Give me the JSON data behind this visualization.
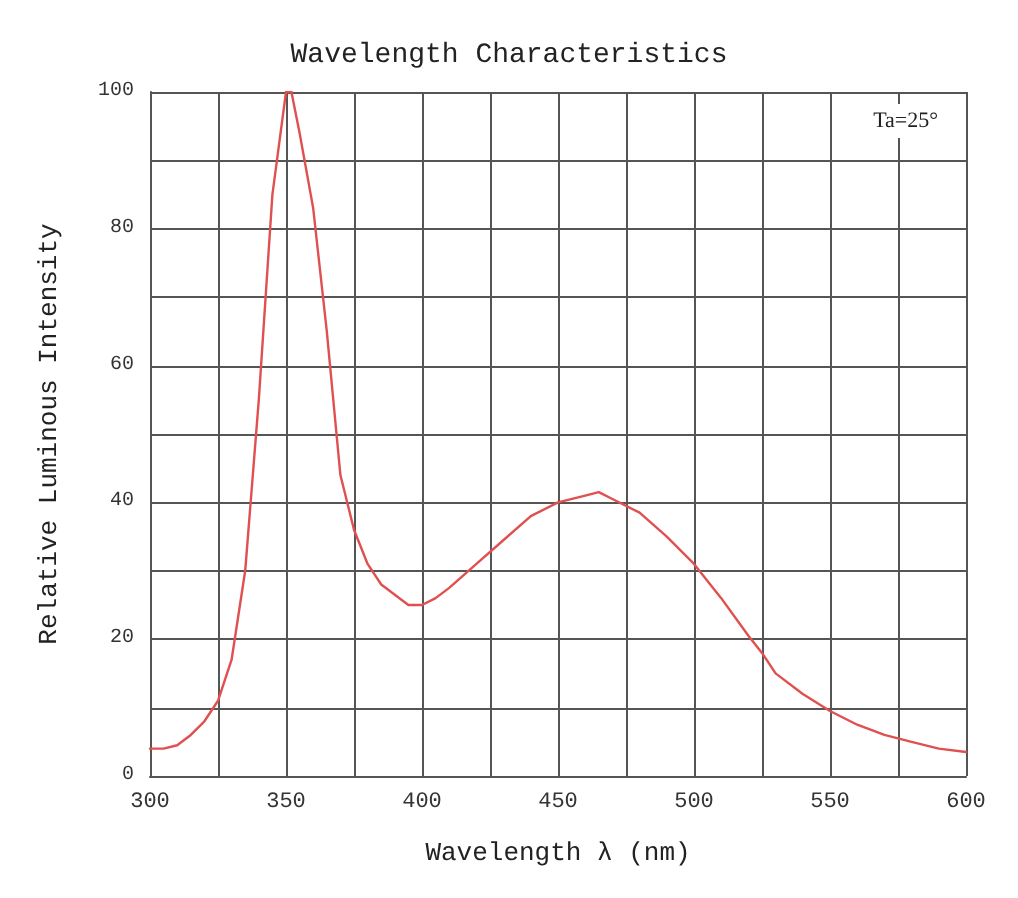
{
  "chart_data": {
    "type": "line",
    "title": "Wavelength Characteristics",
    "xlabel": "Wavelength λ (nm)",
    "ylabel": "Relative Luminous Intensity",
    "annotations": [
      "Ta=25°"
    ],
    "x": [
      300,
      305,
      310,
      315,
      320,
      325,
      330,
      335,
      340,
      345,
      350,
      352,
      355,
      360,
      365,
      370,
      375,
      380,
      385,
      390,
      395,
      400,
      405,
      410,
      420,
      430,
      440,
      450,
      460,
      465,
      470,
      480,
      490,
      500,
      510,
      520,
      525,
      530,
      540,
      550,
      560,
      570,
      580,
      590,
      600
    ],
    "series": [
      {
        "color": "#e05050",
        "values": [
          4,
          4,
          4.5,
          6,
          8,
          11,
          17,
          30,
          55,
          85,
          100,
          100,
          94,
          83,
          65,
          44,
          36,
          31,
          28,
          26.5,
          25,
          25,
          26,
          27.5,
          31,
          34.5,
          38,
          40,
          41,
          41.5,
          40.5,
          38.5,
          35,
          31,
          26,
          20.5,
          18,
          15,
          12,
          9.5,
          7.5,
          6,
          5,
          4,
          3.5
        ]
      }
    ],
    "xlim": [
      300,
      600
    ],
    "xticks": [
      300,
      {
        "value": 325,
        "label": null
      },
      350,
      {
        "value": 375,
        "label": null
      },
      400,
      {
        "value": 425,
        "label": null
      },
      450,
      {
        "value": 475,
        "label": null
      },
      500,
      {
        "value": 525,
        "label": null
      },
      550,
      {
        "value": 575,
        "label": null
      },
      600
    ],
    "ylim": [
      0,
      100
    ],
    "yticks": [
      0,
      {
        "value": 10,
        "label": null
      },
      20,
      {
        "value": 30,
        "label": null
      },
      40,
      {
        "value": 50,
        "label": null
      },
      60,
      {
        "value": 70,
        "label": null
      },
      80,
      {
        "value": 90,
        "label": null
      },
      100
    ],
    "grid": true,
    "marker": "none",
    "line_style": "solid"
  }
}
